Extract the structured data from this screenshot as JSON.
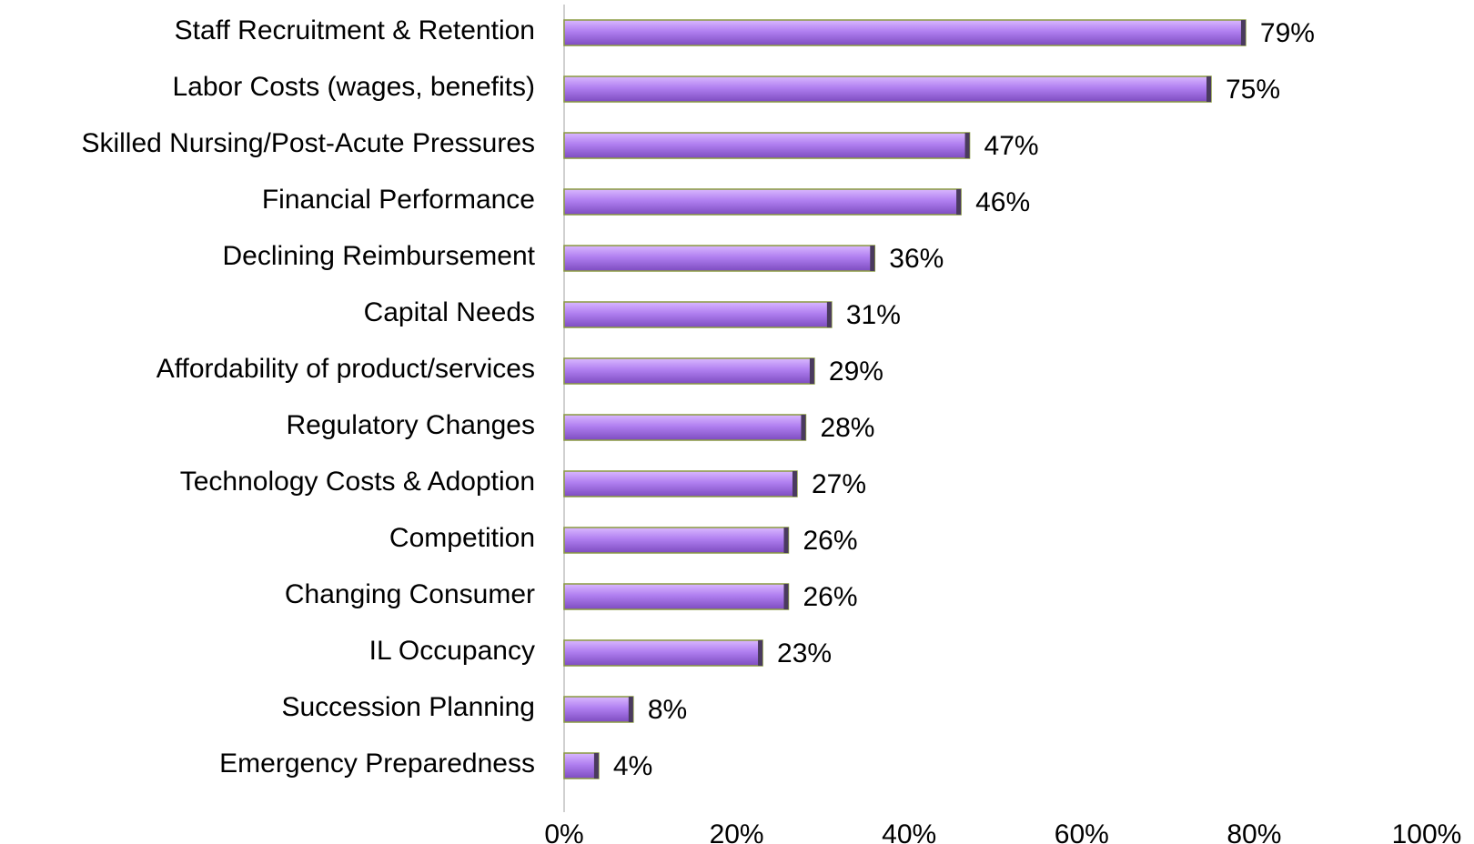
{
  "chart_data": {
    "type": "bar",
    "orientation": "horizontal",
    "categories": [
      "Staff Recruitment & Retention",
      "Labor Costs (wages, benefits)",
      "Skilled Nursing/Post-Acute Pressures",
      "Financial Performance",
      "Declining Reimbursement",
      "Capital Needs",
      "Affordability of product/services",
      "Regulatory Changes",
      "Technology Costs & Adoption",
      "Competition",
      "Changing Consumer",
      "IL Occupancy",
      "Succession Planning",
      "Emergency Preparedness"
    ],
    "values": [
      79,
      75,
      47,
      46,
      36,
      31,
      29,
      28,
      27,
      26,
      26,
      23,
      8,
      4
    ],
    "value_labels": [
      "79%",
      "75%",
      "47%",
      "46%",
      "36%",
      "31%",
      "29%",
      "28%",
      "27%",
      "26%",
      "26%",
      "23%",
      "8%",
      "4%"
    ],
    "color": "#a66ee6",
    "xlim": [
      0,
      100
    ],
    "xticks": [
      {
        "value": 0,
        "label": "0%"
      },
      {
        "value": 20,
        "label": "20%"
      },
      {
        "value": 40,
        "label": "40%"
      },
      {
        "value": 60,
        "label": "60%"
      },
      {
        "value": 80,
        "label": "80%"
      },
      {
        "value": 100,
        "label": "100%"
      }
    ],
    "grid": false
  }
}
